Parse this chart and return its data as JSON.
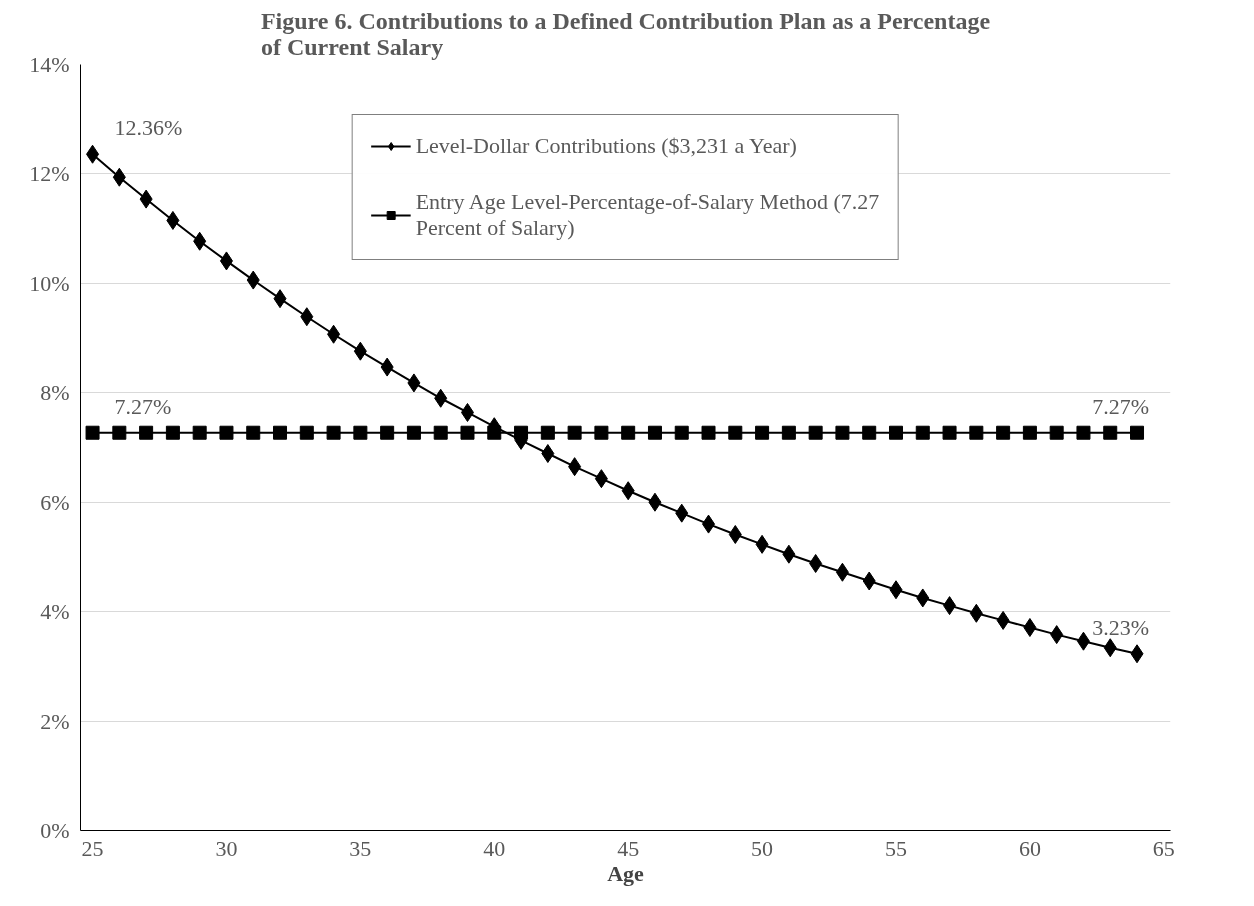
{
  "chart_data": {
    "type": "line",
    "title": "Figure 6. Contributions to a Defined Contribution Plan as a Percentage of Current Salary",
    "xlabel": "Age",
    "x": [
      25,
      26,
      27,
      28,
      29,
      30,
      31,
      32,
      33,
      34,
      35,
      36,
      37,
      38,
      39,
      40,
      41,
      42,
      43,
      44,
      45,
      46,
      47,
      48,
      49,
      50,
      51,
      52,
      53,
      54,
      55,
      56,
      57,
      58,
      59,
      60,
      61,
      62,
      63,
      64
    ],
    "series": [
      {
        "name": "Level-Dollar Contributions ($3,231 a Year)",
        "color": "#000000",
        "marker": "diamond",
        "values": [
          12.36,
          11.94,
          11.54,
          11.15,
          10.77,
          10.41,
          10.06,
          9.72,
          9.39,
          9.07,
          8.76,
          8.47,
          8.18,
          7.9,
          7.64,
          7.38,
          7.13,
          6.89,
          6.65,
          6.43,
          6.21,
          6.0,
          5.8,
          5.6,
          5.41,
          5.23,
          5.05,
          4.88,
          4.72,
          4.56,
          4.4,
          4.25,
          4.11,
          3.97,
          3.84,
          3.71,
          3.58,
          3.46,
          3.34,
          3.23
        ],
        "value_labels": [
          "12.36%",
          null,
          null,
          null,
          null,
          null,
          null,
          null,
          null,
          null,
          null,
          null,
          null,
          null,
          null,
          null,
          null,
          null,
          null,
          null,
          null,
          null,
          null,
          null,
          null,
          null,
          null,
          null,
          null,
          null,
          null,
          null,
          null,
          null,
          null,
          null,
          null,
          null,
          null,
          "3.23%"
        ]
      },
      {
        "name": "Entry Age Level-Percentage-of-Salary Method (7.27 Percent of Salary)",
        "color": "#000000",
        "marker": "square",
        "values": [
          7.27,
          7.27,
          7.27,
          7.27,
          7.27,
          7.27,
          7.27,
          7.27,
          7.27,
          7.27,
          7.27,
          7.27,
          7.27,
          7.27,
          7.27,
          7.27,
          7.27,
          7.27,
          7.27,
          7.27,
          7.27,
          7.27,
          7.27,
          7.27,
          7.27,
          7.27,
          7.27,
          7.27,
          7.27,
          7.27,
          7.27,
          7.27,
          7.27,
          7.27,
          7.27,
          7.27,
          7.27,
          7.27,
          7.27,
          7.27
        ],
        "value_labels": [
          "7.27%",
          null,
          null,
          null,
          null,
          null,
          null,
          null,
          null,
          null,
          null,
          null,
          null,
          null,
          null,
          null,
          null,
          null,
          null,
          null,
          null,
          null,
          null,
          null,
          null,
          null,
          null,
          null,
          null,
          null,
          null,
          null,
          null,
          null,
          null,
          null,
          null,
          null,
          null,
          "7.27%"
        ]
      }
    ],
    "xlim": [
      24.55,
      65.25
    ],
    "xticks": [
      25,
      30,
      35,
      40,
      45,
      50,
      55,
      60,
      65
    ],
    "ylim": [
      0,
      14
    ],
    "yticks": [
      {
        "value": 0,
        "label": "0%"
      },
      {
        "value": 2,
        "label": "2%"
      },
      {
        "value": 4,
        "label": "4%"
      },
      {
        "value": 6,
        "label": "6%"
      },
      {
        "value": 8,
        "label": "8%"
      },
      {
        "value": 10,
        "label": "10%"
      },
      {
        "value": 12,
        "label": "12%"
      },
      {
        "value": 14,
        "label": "14%"
      }
    ],
    "grid": "y",
    "legend": "top",
    "line_style": "solid"
  }
}
